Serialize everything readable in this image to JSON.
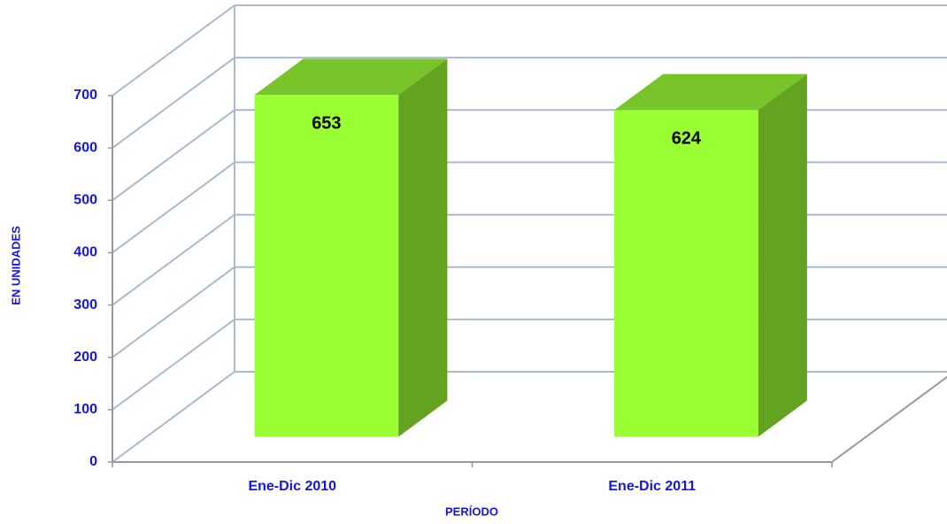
{
  "chart_data": {
    "type": "bar3d",
    "categories": [
      "Ene-Dic 2010",
      "Ene-Dic 2011"
    ],
    "values": [
      653,
      624
    ],
    "color": "#99ff33",
    "ylim": [
      0,
      700
    ],
    "yticks": [
      0,
      100,
      200,
      300,
      400,
      500,
      600,
      700
    ],
    "grid": true,
    "x_label": "PERÍODO",
    "y_label": "EN UNIDADES"
  }
}
